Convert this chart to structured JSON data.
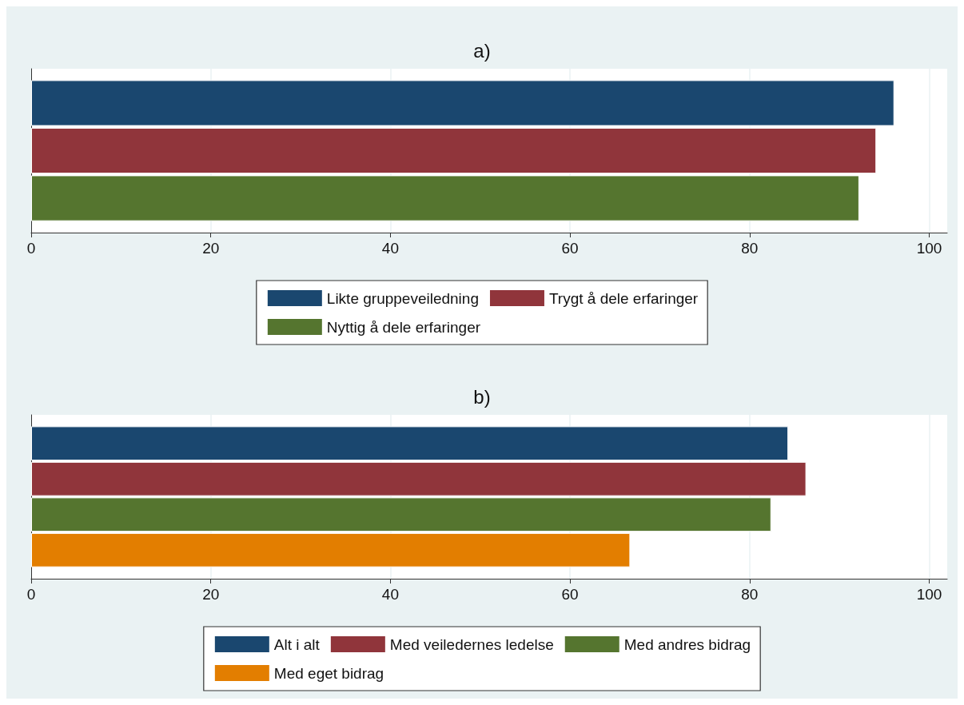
{
  "chart_data": [
    {
      "type": "bar",
      "title": "a)",
      "orientation": "horizontal",
      "categories": [
        null
      ],
      "xlim": [
        0,
        102
      ],
      "xticks": [
        0,
        20,
        40,
        60,
        80,
        100
      ],
      "grid": "x",
      "legend": "bottom",
      "series": [
        {
          "name": "Likte gruppeveiledning",
          "color": "#1a476f",
          "values": [
            96.1
          ]
        },
        {
          "name": "Trygt å dele erfaringer",
          "color": "#90353b",
          "values": [
            94.1
          ]
        },
        {
          "name": "Nyttig å dele erfaringer",
          "color": "#55752f",
          "values": [
            92.2
          ]
        }
      ]
    },
    {
      "type": "bar",
      "title": "b)",
      "orientation": "horizontal",
      "categories": [
        null
      ],
      "xlim": [
        0,
        102
      ],
      "xticks": [
        0,
        20,
        40,
        60,
        80,
        100
      ],
      "grid": "x",
      "legend": "bottom",
      "series": [
        {
          "name": "Alt i alt",
          "color": "#1a476f",
          "values": [
            84.3
          ]
        },
        {
          "name": "Med veiledernes ledelse",
          "color": "#90353b",
          "values": [
            86.3
          ]
        },
        {
          "name": "Med andres bidrag",
          "color": "#55752f",
          "values": [
            82.4
          ]
        },
        {
          "name": "Med eget bidrag",
          "color": "#e37e00",
          "values": [
            66.7
          ]
        }
      ]
    }
  ]
}
